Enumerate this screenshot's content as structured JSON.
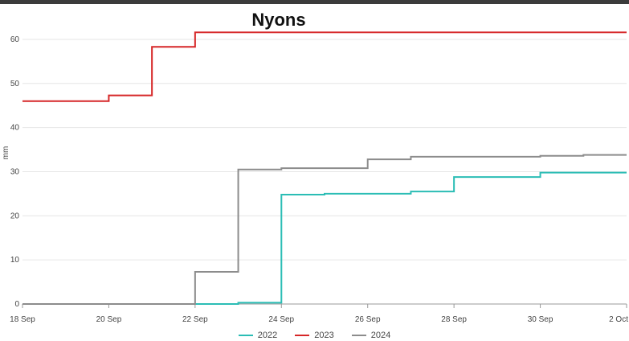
{
  "chart_data": {
    "type": "line",
    "title": "Nyons",
    "ylabel": "mm",
    "xlabel": "",
    "ylim": [
      0,
      62
    ],
    "x_ticks": [
      "18 Sep",
      "20 Sep",
      "22 Sep",
      "24 Sep",
      "26 Sep",
      "28 Sep",
      "30 Sep",
      "2 Oct"
    ],
    "y_ticks": [
      "0",
      "10",
      "20",
      "30",
      "40",
      "50",
      "60"
    ],
    "grid": true,
    "legend_position": "bottom",
    "series": [
      {
        "name": "2022",
        "color": "#2bbdb5",
        "x": [
          "18 Sep",
          "19 Sep",
          "20 Sep",
          "21 Sep",
          "22 Sep",
          "23 Sep",
          "24 Sep",
          "25 Sep",
          "26 Sep",
          "27 Sep",
          "28 Sep",
          "29 Sep",
          "30 Sep",
          "1 Oct",
          "2 Oct"
        ],
        "y": [
          0,
          0,
          0,
          0,
          0,
          0.3,
          24.8,
          25.0,
          25.0,
          25.5,
          28.8,
          28.8,
          29.8,
          29.8,
          29.8
        ]
      },
      {
        "name": "2023",
        "color": "#d62728",
        "x": [
          "18 Sep",
          "19 Sep",
          "20 Sep",
          "21 Sep",
          "22 Sep",
          "23 Sep",
          "24 Sep",
          "25 Sep",
          "26 Sep",
          "27 Sep",
          "28 Sep",
          "29 Sep",
          "30 Sep",
          "1 Oct",
          "2 Oct"
        ],
        "y": [
          46.0,
          46.0,
          47.3,
          58.3,
          61.6,
          61.6,
          61.6,
          61.6,
          61.6,
          61.6,
          61.6,
          61.6,
          61.6,
          61.6,
          61.6
        ]
      },
      {
        "name": "2024",
        "color": "#8c8c8c",
        "x": [
          "18 Sep",
          "19 Sep",
          "20 Sep",
          "21 Sep",
          "22 Sep",
          "23 Sep",
          "24 Sep",
          "25 Sep",
          "26 Sep",
          "27 Sep",
          "28 Sep",
          "29 Sep",
          "30 Sep",
          "1 Oct",
          "2 Oct"
        ],
        "y": [
          0,
          0,
          0,
          0,
          7.3,
          30.5,
          30.8,
          30.8,
          32.8,
          33.4,
          33.4,
          33.4,
          33.6,
          33.8,
          33.8
        ]
      }
    ]
  }
}
